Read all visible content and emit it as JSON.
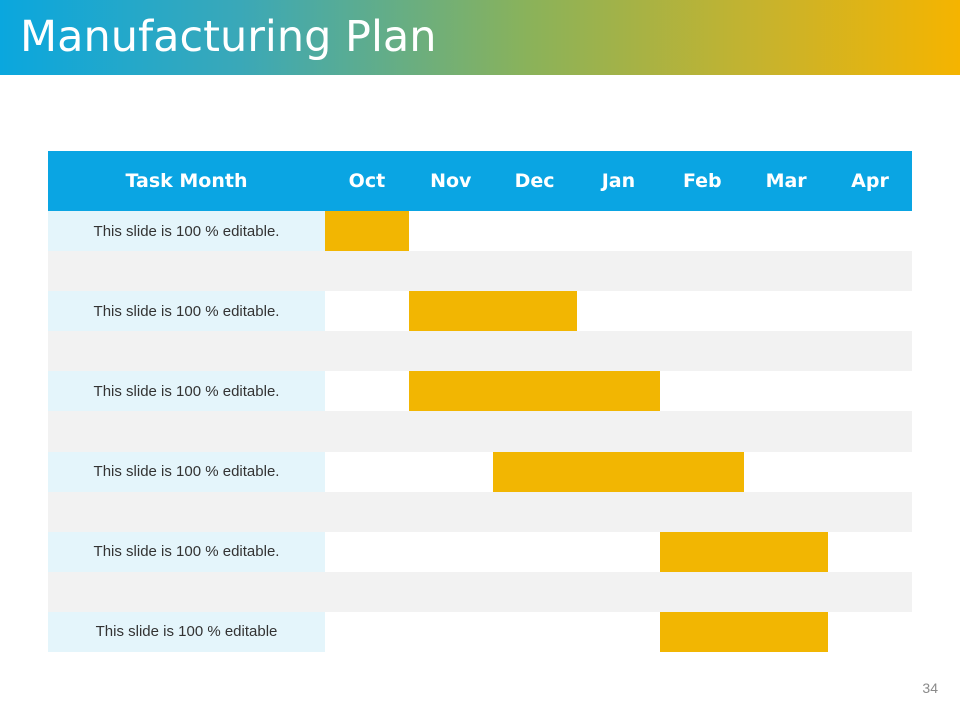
{
  "slide": {
    "title": "Manufacturing Plan",
    "page_number": "34",
    "colors": {
      "header": "#0aa5e3",
      "bar": "#f2b602",
      "task_cell": "#e4f5fb",
      "spacer_row": "#f2f2f2"
    }
  },
  "gantt": {
    "header_task": "Task Month",
    "months": [
      "Oct",
      "Nov",
      "Dec",
      "Jan",
      "Feb",
      "Mar",
      "Apr"
    ],
    "rows": [
      {
        "task": "This slide is 100 % editable.",
        "start": "Oct",
        "end": "Oct"
      },
      {
        "task": "This slide is 100 % editable.",
        "start": "Nov",
        "end": "Dec"
      },
      {
        "task": "This slide is 100 % editable.",
        "start": "Nov",
        "end": "Jan"
      },
      {
        "task": "This slide is 100 % editable.",
        "start": "Dec",
        "end": "Feb"
      },
      {
        "task": "This slide is 100 % editable.",
        "start": "Feb",
        "end": "Mar"
      },
      {
        "task": "This slide is 100 % editable",
        "start": "Feb",
        "end": "Mar"
      }
    ]
  }
}
